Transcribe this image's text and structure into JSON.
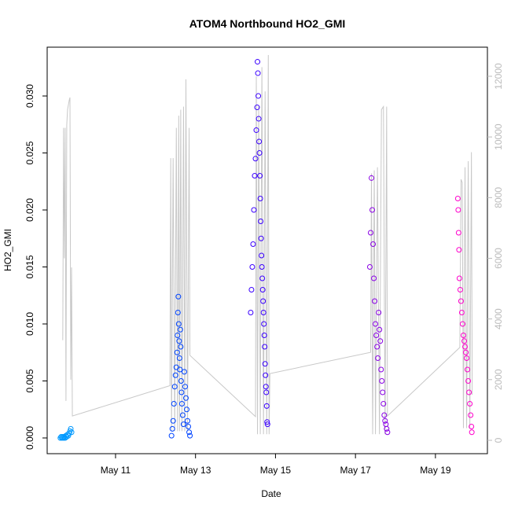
{
  "chart_data": {
    "type": "scatter",
    "title": "ATOM4 Northbound HO2_GMI",
    "x_label": "Date",
    "y_label": "HO2_GMI",
    "xlim": [
      9.29,
      20.3
    ],
    "xticks": [
      {
        "value": 11,
        "label": "May 11"
      },
      {
        "value": 13,
        "label": "May 13"
      },
      {
        "value": 15,
        "label": "May 15"
      },
      {
        "value": 17,
        "label": "May 17"
      },
      {
        "value": 19,
        "label": "May 19"
      }
    ],
    "ylim": [
      -0.00138,
      0.03428
    ],
    "yticks": [
      {
        "value": 0,
        "label": "0.000"
      },
      {
        "value": 0.005,
        "label": "0.005"
      },
      {
        "value": 0.01,
        "label": "0.010"
      },
      {
        "value": 0.015,
        "label": "0.015"
      },
      {
        "value": 0.02,
        "label": "0.020"
      },
      {
        "value": 0.025,
        "label": "0.025"
      },
      {
        "value": 0.03,
        "label": "0.030"
      }
    ],
    "y2lim": [
      -441,
      12959
    ],
    "y2ticks": [
      0,
      2000,
      4000,
      6000,
      8000,
      10000,
      12000
    ],
    "series": [
      {
        "color": "#0099ff",
        "x": [
          9.62,
          9.64,
          9.66,
          9.68,
          9.7,
          9.72,
          9.74,
          9.76,
          9.78,
          9.8,
          9.82,
          9.84,
          9.86,
          9.88,
          9.9
        ],
        "values": [
          0.0,
          0.0001,
          0.0,
          0.0001,
          0.0,
          0.0001,
          0.0,
          0.0002,
          0.0001,
          0.0003,
          0.0002,
          0.0004,
          0.0006,
          0.0008,
          0.0005
        ]
      },
      {
        "color": "#0044ff",
        "x": [
          12.4,
          12.42,
          12.44,
          12.46,
          12.48,
          12.5,
          12.52,
          12.54,
          12.55,
          12.56,
          12.57,
          12.58,
          12.59,
          12.6,
          12.61,
          12.62,
          12.63,
          12.64,
          12.65,
          12.66,
          12.68,
          12.7,
          12.72,
          12.74,
          12.76,
          12.78,
          12.8,
          12.82,
          12.84,
          12.86
        ],
        "values": [
          0.0002,
          0.0008,
          0.0015,
          0.003,
          0.0045,
          0.0055,
          0.0062,
          0.0075,
          0.009,
          0.011,
          0.0124,
          0.01,
          0.0085,
          0.007,
          0.006,
          0.0095,
          0.008,
          0.005,
          0.004,
          0.003,
          0.002,
          0.0012,
          0.0058,
          0.0045,
          0.0035,
          0.0025,
          0.0015,
          0.001,
          0.0005,
          0.0002
        ]
      },
      {
        "color": "#3a00ff",
        "x": [
          14.38,
          14.4,
          14.42,
          14.44,
          14.46,
          14.48,
          14.5,
          14.52,
          14.54,
          14.55,
          14.56,
          14.57,
          14.58,
          14.59,
          14.6,
          14.61,
          14.62,
          14.63,
          14.64,
          14.65,
          14.66,
          14.67,
          14.68,
          14.69,
          14.7,
          14.71,
          14.72,
          14.73,
          14.74,
          14.75,
          14.76,
          14.77,
          14.78,
          14.79,
          14.8
        ],
        "values": [
          0.011,
          0.013,
          0.015,
          0.017,
          0.02,
          0.023,
          0.0245,
          0.027,
          0.029,
          0.033,
          0.032,
          0.03,
          0.028,
          0.026,
          0.025,
          0.023,
          0.021,
          0.019,
          0.0175,
          0.016,
          0.015,
          0.014,
          0.013,
          0.012,
          0.011,
          0.01,
          0.009,
          0.008,
          0.0065,
          0.0055,
          0.0045,
          0.004,
          0.0028,
          0.0014,
          0.0012
        ]
      },
      {
        "color": "#8a00e6",
        "x": [
          17.36,
          17.38,
          17.4,
          17.42,
          17.44,
          17.46,
          17.48,
          17.5,
          17.52,
          17.54,
          17.56,
          17.58,
          17.6,
          17.62,
          17.64,
          17.66,
          17.68,
          17.7,
          17.72,
          17.74,
          17.76,
          17.78,
          17.8
        ],
        "values": [
          0.015,
          0.018,
          0.0228,
          0.02,
          0.017,
          0.014,
          0.012,
          0.01,
          0.009,
          0.008,
          0.007,
          0.011,
          0.0095,
          0.0085,
          0.006,
          0.005,
          0.004,
          0.003,
          0.002,
          0.0015,
          0.0012,
          0.0008,
          0.0005
        ]
      },
      {
        "color": "#ff00cc",
        "x": [
          19.56,
          19.57,
          19.58,
          19.59,
          19.6,
          19.62,
          19.64,
          19.66,
          19.68,
          19.7,
          19.72,
          19.74,
          19.76,
          19.78,
          19.8,
          19.82,
          19.84,
          19.86,
          19.88,
          19.9,
          19.91
        ],
        "values": [
          0.021,
          0.02,
          0.018,
          0.0165,
          0.014,
          0.013,
          0.012,
          0.011,
          0.01,
          0.009,
          0.0085,
          0.008,
          0.0075,
          0.007,
          0.006,
          0.005,
          0.004,
          0.003,
          0.002,
          0.001,
          0.0005
        ]
      },
      {
        "axis": "y2",
        "color": "#c8c8c8",
        "x": [
          9.68,
          9.7,
          9.72,
          9.74,
          9.76,
          9.78,
          9.8,
          9.84,
          9.86,
          9.88,
          9.9,
          9.92,
          12.36,
          12.38,
          12.4,
          12.44,
          12.48,
          12.52,
          12.55,
          12.58,
          12.6,
          12.63,
          12.66,
          12.7,
          12.73,
          12.76,
          12.8,
          12.84,
          12.86,
          14.5,
          14.52,
          14.55,
          14.58,
          14.62,
          14.66,
          14.7,
          14.74,
          14.78,
          14.82,
          14.84,
          14.86,
          17.38,
          17.4,
          17.43,
          17.47,
          17.5,
          17.55,
          17.6,
          17.65,
          17.7,
          17.74,
          17.78,
          17.8,
          19.61,
          19.64,
          19.67,
          19.7,
          19.74,
          19.78,
          19.82,
          19.86,
          19.9,
          19.92
        ],
        "values": [
          3300,
          10300,
          6000,
          10300,
          1300,
          10400,
          10900,
          11200,
          11300,
          2000,
          5700,
          800,
          1800,
          9300,
          300,
          9300,
          300,
          10300,
          300,
          10700,
          300,
          10900,
          300,
          11000,
          300,
          11900,
          300,
          10300,
          2800,
          780,
          12000,
          200,
          11000,
          200,
          12300,
          200,
          11500,
          200,
          12700,
          200,
          2200,
          2900,
          8800,
          200,
          8900,
          200,
          9000,
          200,
          10900,
          11000,
          200,
          11000,
          800,
          3060,
          8600,
          8500,
          400,
          9000,
          400,
          9200,
          400,
          9500,
          1500
        ]
      }
    ]
  }
}
